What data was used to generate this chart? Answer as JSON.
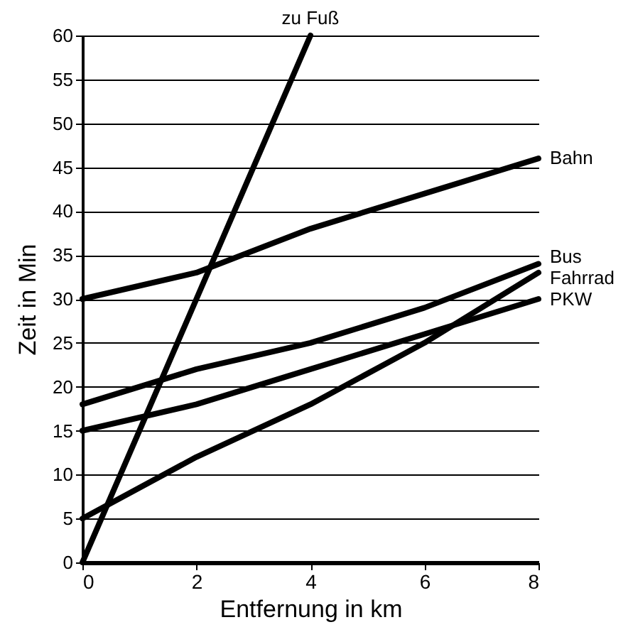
{
  "chart_data": {
    "type": "line",
    "xlabel": "Entfernung in km",
    "ylabel": "Zeit in Min",
    "x": [
      0,
      2,
      4,
      6,
      8
    ],
    "series": [
      {
        "name": "zu Fuß",
        "color": "#000000",
        "x": [
          0,
          4
        ],
        "values": [
          0,
          60
        ]
      },
      {
        "name": "Bahn",
        "color": "#000000",
        "values": [
          30,
          33,
          38,
          42,
          46
        ]
      },
      {
        "name": "Bus",
        "color": "#000000",
        "values": [
          18,
          22,
          25,
          29,
          34
        ]
      },
      {
        "name": "Fahrrad",
        "color": "#000000",
        "values": [
          5,
          12,
          18,
          25,
          33
        ]
      },
      {
        "name": "PKW",
        "color": "#000000",
        "values": [
          15,
          18,
          22,
          26,
          30
        ]
      }
    ],
    "xlim": [
      0,
      8
    ],
    "xticks": [
      0,
      2,
      4,
      6,
      8
    ],
    "ylim": [
      0,
      60
    ],
    "yticks": [
      0,
      5,
      10,
      15,
      20,
      25,
      30,
      35,
      40,
      45,
      50,
      55,
      60
    ],
    "grid": "y",
    "legend": false,
    "marker": "none",
    "line_style": "solid"
  }
}
